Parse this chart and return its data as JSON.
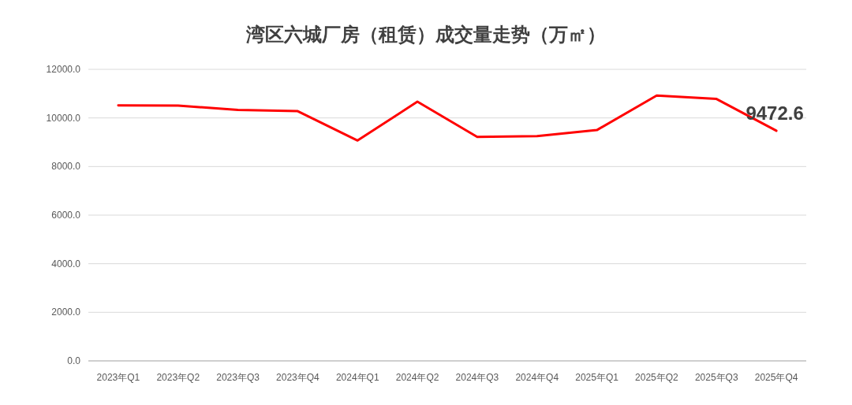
{
  "chart_data": {
    "type": "line",
    "title": "湾区六城厂房（租赁）成交量走势（万㎡）",
    "categories": [
      "2023年Q1",
      "2023年Q2",
      "2023年Q3",
      "2023年Q4",
      "2024年Q1",
      "2024年Q2",
      "2024年Q3",
      "2024年Q4",
      "2025年Q1",
      "2025年Q2",
      "2025年Q3",
      "2025年Q4"
    ],
    "series": [
      {
        "color": "#ff0000",
        "values": [
          10520,
          10510,
          10330,
          10280,
          9070,
          10670,
          9220,
          9250,
          9500,
          10920,
          10780,
          9472.6
        ],
        "value_labels": [
          null,
          null,
          null,
          null,
          null,
          null,
          null,
          null,
          null,
          null,
          null,
          "9472.6"
        ]
      }
    ],
    "ylim": [
      0,
      12000
    ],
    "yticks": [
      {
        "value": 0,
        "label": "0.0"
      },
      {
        "value": 2000,
        "label": "2000.0"
      },
      {
        "value": 4000,
        "label": "4000.0"
      },
      {
        "value": 6000,
        "label": "6000.0"
      },
      {
        "value": 8000,
        "label": "8000.0"
      },
      {
        "value": 10000,
        "label": "10000.0"
      },
      {
        "value": 12000,
        "label": "12000.0"
      }
    ],
    "grid": "y",
    "marker": "none",
    "line_style": "solid"
  }
}
